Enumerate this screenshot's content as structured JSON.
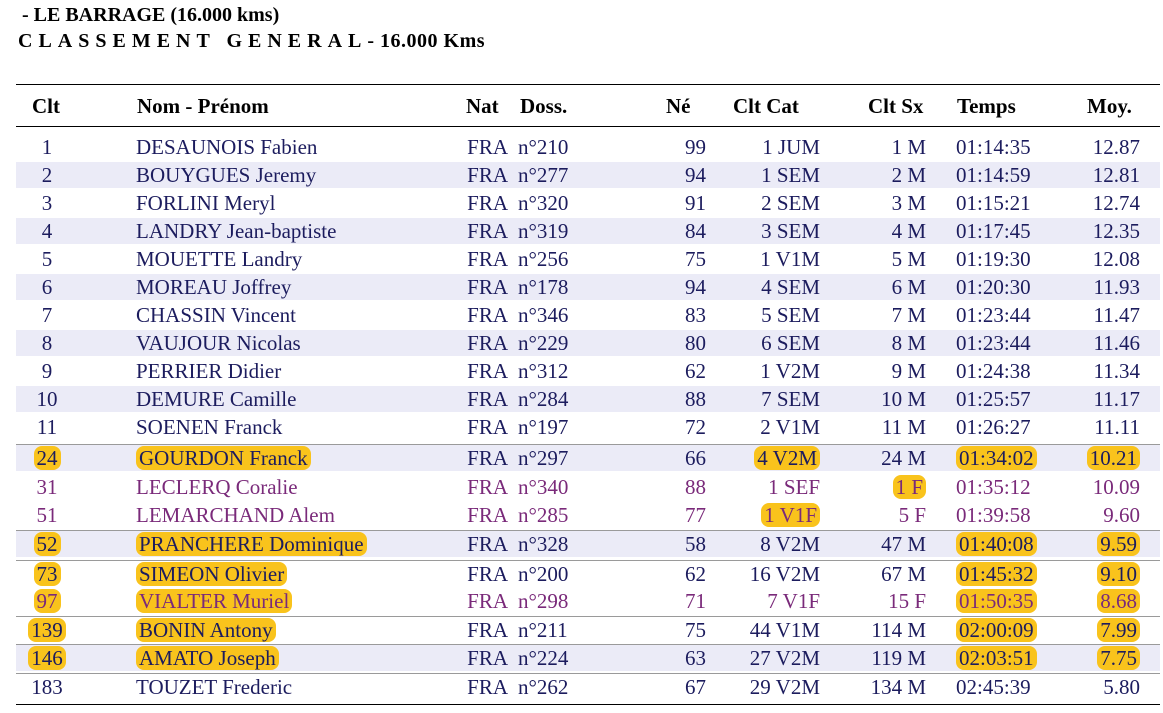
{
  "title": {
    "line1": "- LE BARRAGE (16.000 kms)",
    "line2_spaced": "CLASSEMENT GENERAL",
    "line2_rest": "- 16.000 Kms"
  },
  "columns": {
    "clt": "Clt",
    "nom": "Nom - Prénom",
    "nat": "Nat",
    "doss": "Doss.",
    "ne": "Né",
    "cltcat": "Clt Cat",
    "cltsx": "Clt Sx",
    "temps": "Temps",
    "moy": "Moy."
  },
  "rows": [
    {
      "clt": "1",
      "nom": "DESAUNOIS Fabien",
      "nat": "FRA",
      "doss": "n°210",
      "ne": "99",
      "cat": "1 JUM",
      "sx": "1 M",
      "temps": "01:14:35",
      "moy": "12.87"
    },
    {
      "clt": "2",
      "nom": "BOUYGUES Jeremy",
      "nat": "FRA",
      "doss": "n°277",
      "ne": "94",
      "cat": "1 SEM",
      "sx": "2 M",
      "temps": "01:14:59",
      "moy": "12.81"
    },
    {
      "clt": "3",
      "nom": "FORLINI Meryl",
      "nat": "FRA",
      "doss": "n°320",
      "ne": "91",
      "cat": "2 SEM",
      "sx": "3 M",
      "temps": "01:15:21",
      "moy": "12.74"
    },
    {
      "clt": "4",
      "nom": "LANDRY Jean-baptiste",
      "nat": "FRA",
      "doss": "n°319",
      "ne": "84",
      "cat": "3 SEM",
      "sx": "4 M",
      "temps": "01:17:45",
      "moy": "12.35"
    },
    {
      "clt": "5",
      "nom": "MOUETTE Landry",
      "nat": "FRA",
      "doss": "n°256",
      "ne": "75",
      "cat": "1 V1M",
      "sx": "5 M",
      "temps": "01:19:30",
      "moy": "12.08"
    },
    {
      "clt": "6",
      "nom": "MOREAU Joffrey",
      "nat": "FRA",
      "doss": "n°178",
      "ne": "94",
      "cat": "4 SEM",
      "sx": "6 M",
      "temps": "01:20:30",
      "moy": "11.93"
    },
    {
      "clt": "7",
      "nom": "CHASSIN Vincent",
      "nat": "FRA",
      "doss": "n°346",
      "ne": "83",
      "cat": "5 SEM",
      "sx": "7 M",
      "temps": "01:23:44",
      "moy": "11.47"
    },
    {
      "clt": "8",
      "nom": "VAUJOUR Nicolas",
      "nat": "FRA",
      "doss": "n°229",
      "ne": "80",
      "cat": "6 SEM",
      "sx": "8 M",
      "temps": "01:23:44",
      "moy": "11.46"
    },
    {
      "clt": "9",
      "nom": "PERRIER Didier",
      "nat": "FRA",
      "doss": "n°312",
      "ne": "62",
      "cat": "1 V2M",
      "sx": "9 M",
      "temps": "01:24:38",
      "moy": "11.34"
    },
    {
      "clt": "10",
      "nom": "DEMURE Camille",
      "nat": "FRA",
      "doss": "n°284",
      "ne": "88",
      "cat": "7 SEM",
      "sx": "10 M",
      "temps": "01:25:57",
      "moy": "11.17"
    },
    {
      "clt": "11",
      "nom": "SOENEN Franck",
      "nat": "FRA",
      "doss": "n°197",
      "ne": "72",
      "cat": "2 V1M",
      "sx": "11 M",
      "temps": "01:26:27",
      "moy": "11.11"
    },
    {
      "clt": "24",
      "nom": "GOURDON Franck",
      "nat": "FRA",
      "doss": "n°297",
      "ne": "66",
      "cat": "4 V2M",
      "sx": "24 M",
      "temps": "01:34:02",
      "moy": "10.21"
    },
    {
      "clt": "31",
      "nom": "LECLERQ Coralie",
      "nat": "FRA",
      "doss": "n°340",
      "ne": "88",
      "cat": "1 SEF",
      "sx": "1 F",
      "temps": "01:35:12",
      "moy": "10.09"
    },
    {
      "clt": "51",
      "nom": "LEMARCHAND Alem",
      "nat": "FRA",
      "doss": "n°285",
      "ne": "77",
      "cat": "1 V1F",
      "sx": "5 F",
      "temps": "01:39:58",
      "moy": "9.60"
    },
    {
      "clt": "52",
      "nom": "PRANCHERE Dominique",
      "nat": "FRA",
      "doss": "n°328",
      "ne": "58",
      "cat": "8 V2M",
      "sx": "47 M",
      "temps": "01:40:08",
      "moy": "9.59"
    },
    {
      "clt": "73",
      "nom": "SIMEON Olivier",
      "nat": "FRA",
      "doss": "n°200",
      "ne": "62",
      "cat": "16 V2M",
      "sx": "67 M",
      "temps": "01:45:32",
      "moy": "9.10"
    },
    {
      "clt": "97",
      "nom": "VIALTER Muriel",
      "nat": "FRA",
      "doss": "n°298",
      "ne": "71",
      "cat": "7 V1F",
      "sx": "15 F",
      "temps": "01:50:35",
      "moy": "8.68"
    },
    {
      "clt": "139",
      "nom": "BONIN Antony",
      "nat": "FRA",
      "doss": "n°211",
      "ne": "75",
      "cat": "44 V1M",
      "sx": "114 M",
      "temps": "02:00:09",
      "moy": "7.99"
    },
    {
      "clt": "146",
      "nom": "AMATO Joseph",
      "nat": "FRA",
      "doss": "n°224",
      "ne": "63",
      "cat": "27 V2M",
      "sx": "119 M",
      "temps": "02:03:51",
      "moy": "7.75"
    },
    {
      "clt": "183",
      "nom": "TOUZET Frederic",
      "nat": "FRA",
      "doss": "n°262",
      "ne": "67",
      "cat": "29 V2M",
      "sx": "134 M",
      "temps": "02:45:39",
      "moy": "5.80"
    }
  ]
}
